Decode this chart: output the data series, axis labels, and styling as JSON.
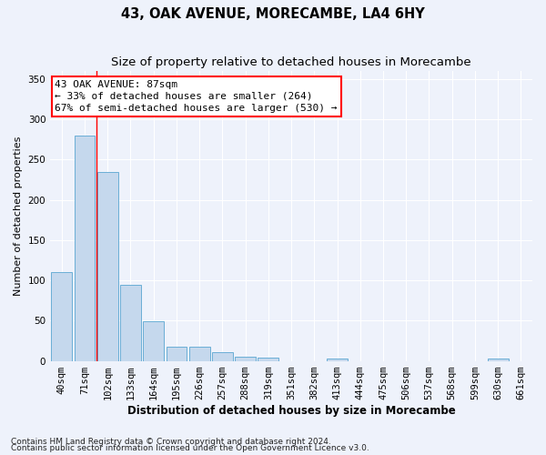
{
  "title": "43, OAK AVENUE, MORECAMBE, LA4 6HY",
  "subtitle": "Size of property relative to detached houses in Morecambe",
  "xlabel": "Distribution of detached houses by size in Morecambe",
  "ylabel": "Number of detached properties",
  "categories": [
    "40sqm",
    "71sqm",
    "102sqm",
    "133sqm",
    "164sqm",
    "195sqm",
    "226sqm",
    "257sqm",
    "288sqm",
    "319sqm",
    "351sqm",
    "382sqm",
    "413sqm",
    "444sqm",
    "475sqm",
    "506sqm",
    "537sqm",
    "568sqm",
    "599sqm",
    "630sqm",
    "661sqm"
  ],
  "values": [
    110,
    280,
    235,
    95,
    49,
    18,
    18,
    11,
    5,
    4,
    0,
    0,
    3,
    0,
    0,
    0,
    0,
    0,
    0,
    3,
    0
  ],
  "bar_color": "#c5d8ed",
  "bar_edgecolor": "#6aaed6",
  "red_line_x": 1.5,
  "annotation_line1": "43 OAK AVENUE: 87sqm",
  "annotation_line2": "← 33% of detached houses are smaller (264)",
  "annotation_line3": "67% of semi-detached houses are larger (530) →",
  "annotation_box_color": "white",
  "annotation_box_edgecolor": "red",
  "footnote1": "Contains HM Land Registry data © Crown copyright and database right 2024.",
  "footnote2": "Contains public sector information licensed under the Open Government Licence v3.0.",
  "ylim": [
    0,
    360
  ],
  "yticks": [
    0,
    50,
    100,
    150,
    200,
    250,
    300,
    350
  ],
  "title_fontsize": 10.5,
  "subtitle_fontsize": 9.5,
  "xlabel_fontsize": 8.5,
  "ylabel_fontsize": 8,
  "tick_fontsize": 7.5,
  "annotation_fontsize": 8,
  "footnote_fontsize": 6.5,
  "background_color": "#eef2fb",
  "plot_background_color": "#eef2fb"
}
